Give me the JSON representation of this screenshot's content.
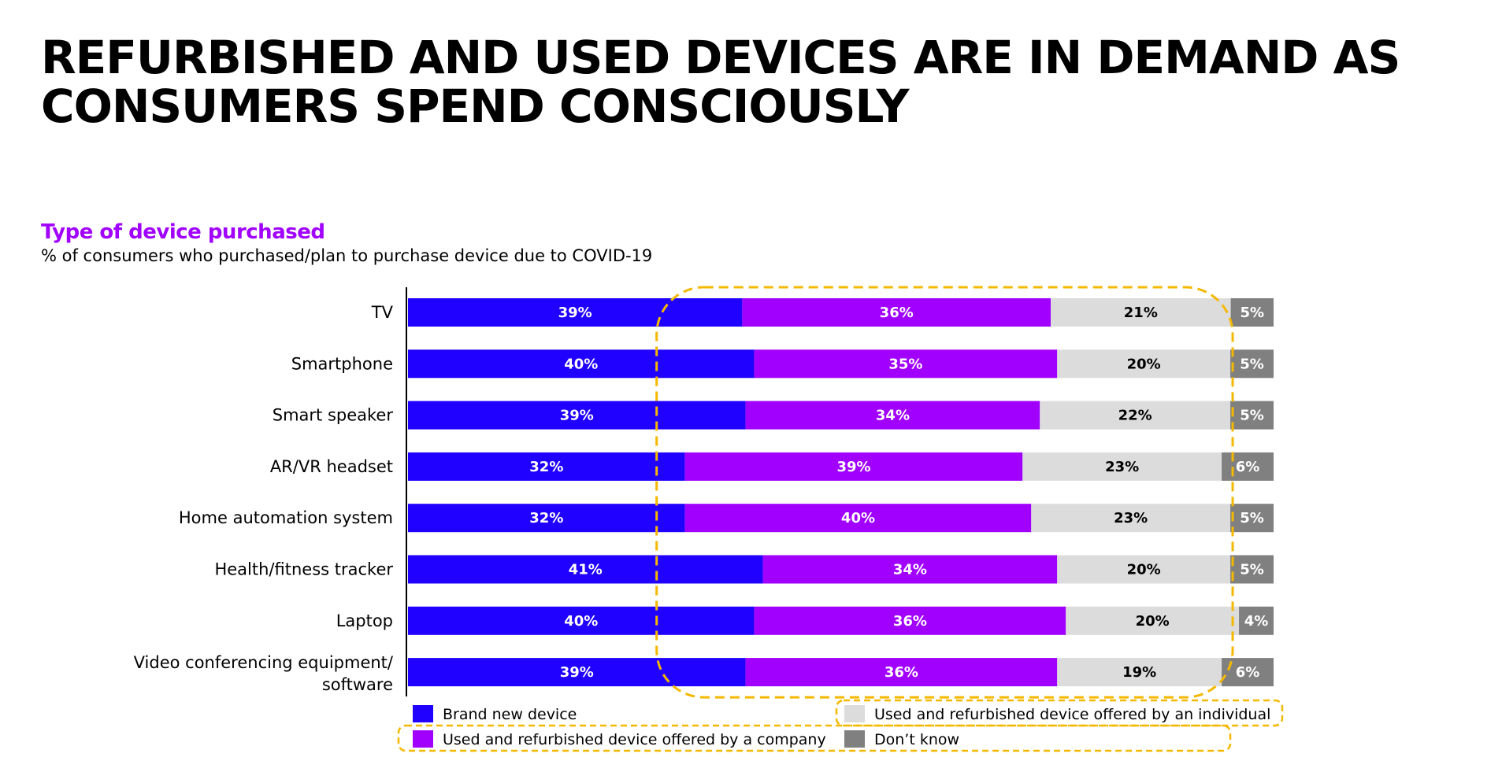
{
  "headline": {
    "line1": "REFURBISHED AND USED DEVICES ARE IN DEMAND AS",
    "line2": "CONSUMERS SPEND CONSCIOUSLY"
  },
  "chart_data": {
    "type": "bar",
    "orientation": "horizontal",
    "stacked": true,
    "title": "Type of device purchased",
    "subtitle": "% of consumers who purchased/plan to purchase device due to COVID-19",
    "unit": "%",
    "categories": [
      "TV",
      "Smartphone",
      "Smart speaker",
      "AR/VR headset",
      "Home automation system",
      "Health/fitness tracker",
      "Laptop",
      "Video conferencing equipment/ software"
    ],
    "series": [
      {
        "name": "Brand new device",
        "color": "#2000ff",
        "label_color": "#ffffff",
        "values": [
          39,
          40,
          39,
          32,
          32,
          41,
          40,
          39
        ]
      },
      {
        "name": "Used and refurbished device offered by a company",
        "color": "#a100ff",
        "label_color": "#ffffff",
        "values": [
          36,
          35,
          34,
          39,
          40,
          34,
          36,
          36
        ]
      },
      {
        "name": "Used and refurbished device offered by an individual",
        "color": "#dcdcdc",
        "label_color": "#000000",
        "values": [
          21,
          20,
          22,
          23,
          23,
          20,
          20,
          19
        ]
      },
      {
        "name": "Don’t know",
        "color": "#808080",
        "label_color": "#ffffff",
        "values": [
          5,
          5,
          5,
          6,
          5,
          5,
          4,
          6
        ]
      }
    ],
    "legend": {
      "placement": "bottom",
      "highlighted_series": [
        "Used and refurbished device offered by a company",
        "Used and refurbished device offered by an individual"
      ]
    },
    "annotation": {
      "type": "dashed-highlight",
      "color": "#f5b800",
      "covers_series": [
        "Used and refurbished device offered by a company",
        "Used and refurbished device offered by an individual"
      ]
    }
  }
}
